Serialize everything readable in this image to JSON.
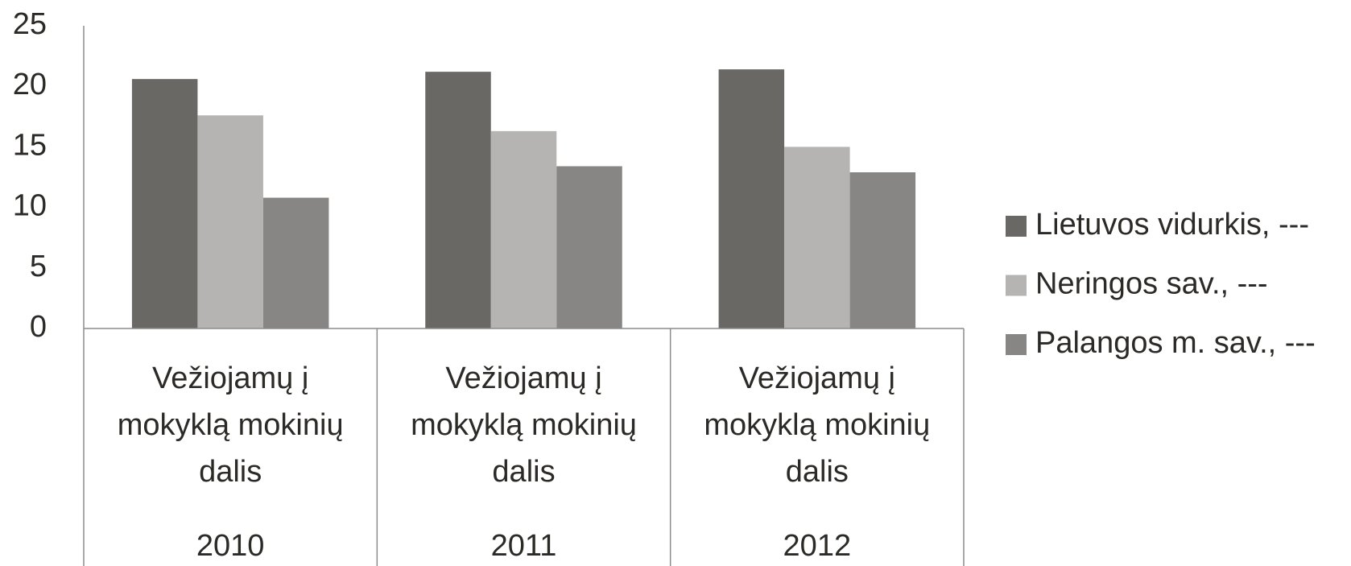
{
  "chart_data": {
    "type": "bar",
    "categories": [
      "2010",
      "2011",
      "2012"
    ],
    "category_labels": [
      "Vežiojamų į mokyklą mokinių dalis",
      "Vežiojamų į mokyklą mokinių dalis",
      "Vežiojamų į mokyklą mokinių dalis"
    ],
    "series": [
      {
        "name": "Lietuvos vidurkis, ---",
        "color": "#6a6864",
        "values": [
          20.6,
          21.2,
          21.4
        ]
      },
      {
        "name": "Neringos sav., ---",
        "color": "#b5b4b2",
        "values": [
          17.6,
          16.3,
          15.0
        ]
      },
      {
        "name": "Palangos m. sav., ---",
        "color": "#878684",
        "values": [
          10.8,
          13.4,
          12.9
        ]
      }
    ],
    "ylim": [
      0,
      25
    ],
    "yticks": [
      0,
      5,
      10,
      15,
      20,
      25
    ],
    "grid": false,
    "legend": "right"
  }
}
